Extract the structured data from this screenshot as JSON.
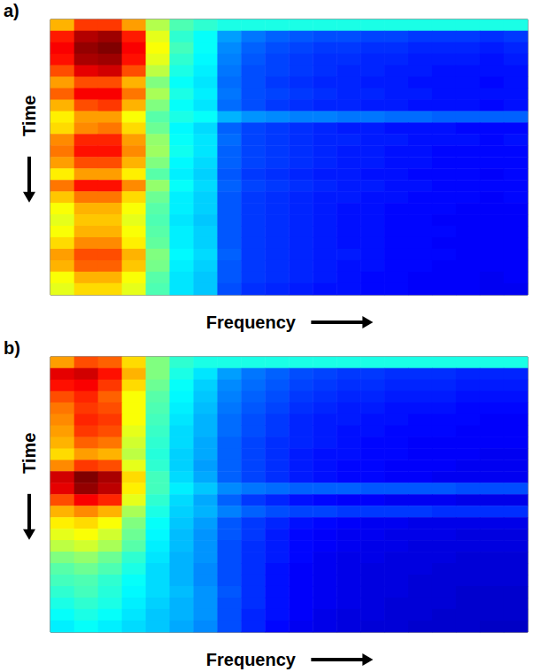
{
  "chart_data": [
    {
      "type": "heatmap",
      "title": "a)",
      "xlabel": "Frequency",
      "ylabel": "Time",
      "tick_labels": false,
      "zlim": [
        0,
        100
      ],
      "values": [
        [
          70,
          82,
          82,
          72,
          55,
          45,
          42,
          40,
          40,
          40,
          40,
          40,
          40,
          40,
          40,
          40,
          40,
          40,
          40,
          40
        ],
        [
          85,
          95,
          97,
          85,
          60,
          42,
          38,
          28,
          24,
          22,
          21,
          20,
          20,
          19,
          19,
          18,
          18,
          18,
          17,
          18
        ],
        [
          88,
          98,
          100,
          88,
          62,
          44,
          38,
          26,
          22,
          20,
          19,
          18,
          18,
          17,
          17,
          16,
          16,
          16,
          15,
          16
        ],
        [
          86,
          96,
          97,
          86,
          60,
          42,
          37,
          25,
          21,
          19,
          18,
          17,
          17,
          16,
          16,
          15,
          15,
          15,
          14,
          15
        ],
        [
          80,
          90,
          92,
          80,
          56,
          40,
          36,
          24,
          20,
          19,
          18,
          17,
          16,
          16,
          15,
          15,
          14,
          14,
          14,
          14
        ],
        [
          72,
          80,
          80,
          70,
          50,
          38,
          35,
          23,
          20,
          18,
          17,
          16,
          16,
          15,
          15,
          14,
          14,
          14,
          13,
          14
        ],
        [
          78,
          88,
          88,
          76,
          54,
          40,
          36,
          24,
          20,
          19,
          18,
          17,
          16,
          16,
          15,
          15,
          14,
          14,
          14,
          14
        ],
        [
          70,
          80,
          82,
          70,
          50,
          38,
          35,
          23,
          20,
          18,
          17,
          16,
          16,
          15,
          15,
          14,
          14,
          14,
          13,
          14
        ],
        [
          64,
          72,
          72,
          62,
          46,
          40,
          38,
          30,
          27,
          26,
          25,
          25,
          24,
          24,
          23,
          23,
          22,
          22,
          22,
          22
        ],
        [
          66,
          74,
          76,
          66,
          48,
          37,
          34,
          22,
          19,
          18,
          17,
          16,
          15,
          15,
          14,
          14,
          14,
          13,
          13,
          13
        ],
        [
          74,
          84,
          84,
          72,
          52,
          38,
          35,
          23,
          19,
          18,
          17,
          16,
          16,
          15,
          15,
          14,
          14,
          14,
          13,
          14
        ],
        [
          76,
          86,
          86,
          74,
          53,
          39,
          35,
          22,
          19,
          18,
          17,
          16,
          15,
          15,
          14,
          14,
          13,
          13,
          13,
          13
        ],
        [
          72,
          80,
          80,
          70,
          50,
          37,
          34,
          22,
          19,
          18,
          17,
          16,
          15,
          15,
          14,
          14,
          13,
          13,
          13,
          13
        ],
        [
          64,
          72,
          72,
          64,
          46,
          36,
          33,
          21,
          18,
          17,
          16,
          15,
          15,
          14,
          14,
          13,
          13,
          13,
          12,
          13
        ],
        [
          76,
          86,
          86,
          74,
          52,
          38,
          34,
          22,
          19,
          18,
          17,
          16,
          15,
          15,
          14,
          14,
          13,
          13,
          13,
          13
        ],
        [
          68,
          76,
          76,
          66,
          48,
          36,
          33,
          21,
          18,
          17,
          16,
          15,
          15,
          14,
          14,
          13,
          13,
          13,
          12,
          13
        ],
        [
          62,
          70,
          70,
          62,
          46,
          36,
          33,
          21,
          18,
          17,
          16,
          15,
          14,
          14,
          13,
          13,
          13,
          12,
          12,
          12
        ],
        [
          60,
          68,
          68,
          60,
          45,
          35,
          32,
          21,
          18,
          17,
          16,
          15,
          14,
          14,
          13,
          13,
          12,
          12,
          12,
          12
        ],
        [
          62,
          70,
          70,
          62,
          46,
          36,
          33,
          21,
          18,
          17,
          16,
          15,
          14,
          14,
          13,
          13,
          13,
          12,
          12,
          12
        ],
        [
          66,
          74,
          74,
          64,
          47,
          36,
          33,
          21,
          18,
          17,
          16,
          15,
          14,
          14,
          13,
          13,
          12,
          12,
          12,
          12
        ],
        [
          72,
          80,
          80,
          70,
          50,
          37,
          34,
          22,
          18,
          17,
          16,
          15,
          15,
          14,
          13,
          13,
          13,
          12,
          12,
          12
        ],
        [
          70,
          78,
          78,
          68,
          49,
          36,
          33,
          21,
          18,
          17,
          16,
          15,
          14,
          14,
          13,
          13,
          12,
          12,
          12,
          12
        ],
        [
          62,
          70,
          70,
          62,
          46,
          35,
          32,
          21,
          18,
          17,
          16,
          15,
          14,
          13,
          13,
          12,
          12,
          12,
          11,
          12
        ],
        [
          60,
          66,
          66,
          60,
          45,
          35,
          32,
          20,
          17,
          16,
          15,
          14,
          14,
          13,
          13,
          12,
          12,
          12,
          11,
          11
        ]
      ]
    },
    {
      "type": "heatmap",
      "title": "b)",
      "xlabel": "Frequency",
      "ylabel": "Time",
      "tick_labels": false,
      "zlim": [
        0,
        100
      ],
      "values": [
        [
          72,
          80,
          78,
          66,
          50,
          42,
          40,
          40,
          40,
          40,
          40,
          40,
          40,
          40,
          40,
          40,
          40,
          40,
          40,
          40
        ],
        [
          90,
          92,
          86,
          70,
          50,
          40,
          35,
          28,
          24,
          22,
          20,
          19,
          18,
          18,
          17,
          17,
          17,
          16,
          16,
          16
        ],
        [
          86,
          88,
          82,
          66,
          48,
          38,
          33,
          26,
          23,
          21,
          19,
          18,
          17,
          17,
          16,
          16,
          16,
          15,
          15,
          15
        ],
        [
          80,
          84,
          78,
          62,
          46,
          37,
          32,
          25,
          22,
          20,
          18,
          17,
          16,
          16,
          15,
          15,
          15,
          14,
          14,
          14
        ],
        [
          76,
          82,
          80,
          62,
          45,
          36,
          31,
          24,
          21,
          19,
          17,
          16,
          15,
          15,
          14,
          14,
          14,
          13,
          13,
          13
        ],
        [
          74,
          84,
          82,
          62,
          44,
          35,
          30,
          23,
          20,
          18,
          16,
          15,
          15,
          14,
          14,
          13,
          13,
          13,
          12,
          12
        ],
        [
          72,
          82,
          80,
          60,
          43,
          34,
          30,
          23,
          20,
          18,
          16,
          15,
          14,
          14,
          13,
          13,
          13,
          12,
          12,
          12
        ],
        [
          70,
          78,
          76,
          58,
          42,
          34,
          29,
          22,
          19,
          17,
          16,
          15,
          14,
          13,
          13,
          12,
          12,
          12,
          12,
          12
        ],
        [
          66,
          72,
          70,
          56,
          41,
          33,
          29,
          22,
          19,
          17,
          15,
          14,
          14,
          13,
          13,
          12,
          12,
          12,
          11,
          11
        ],
        [
          74,
          82,
          80,
          60,
          42,
          33,
          28,
          22,
          19,
          17,
          15,
          14,
          13,
          13,
          12,
          12,
          12,
          11,
          11,
          11
        ],
        [
          92,
          100,
          96,
          66,
          44,
          34,
          29,
          22,
          19,
          17,
          15,
          14,
          13,
          13,
          12,
          12,
          11,
          11,
          11,
          11
        ],
        [
          90,
          98,
          94,
          64,
          44,
          36,
          32,
          26,
          24,
          23,
          22,
          22,
          22,
          21,
          21,
          21,
          21,
          20,
          20,
          20
        ],
        [
          80,
          88,
          84,
          60,
          42,
          34,
          29,
          22,
          18,
          16,
          14,
          13,
          12,
          12,
          11,
          11,
          11,
          10,
          10,
          10
        ],
        [
          70,
          74,
          70,
          54,
          40,
          33,
          30,
          25,
          22,
          20,
          19,
          19,
          18,
          18,
          18,
          18,
          17,
          17,
          17,
          17
        ],
        [
          64,
          66,
          62,
          50,
          38,
          32,
          28,
          21,
          18,
          16,
          14,
          13,
          12,
          11,
          11,
          10,
          10,
          10,
          10,
          10
        ],
        [
          60,
          62,
          58,
          48,
          37,
          31,
          27,
          21,
          18,
          15,
          13,
          12,
          11,
          11,
          10,
          10,
          10,
          9,
          9,
          9
        ],
        [
          56,
          58,
          54,
          46,
          36,
          31,
          27,
          20,
          17,
          15,
          13,
          12,
          11,
          10,
          10,
          9,
          9,
          9,
          9,
          9
        ],
        [
          50,
          52,
          48,
          42,
          35,
          30,
          27,
          20,
          17,
          15,
          13,
          11,
          10,
          10,
          9,
          9,
          9,
          8,
          8,
          8
        ],
        [
          46,
          48,
          45,
          40,
          34,
          30,
          26,
          20,
          17,
          14,
          12,
          11,
          10,
          9,
          9,
          9,
          8,
          8,
          8,
          8
        ],
        [
          44,
          45,
          42,
          38,
          34,
          30,
          26,
          20,
          17,
          14,
          12,
          11,
          10,
          9,
          9,
          8,
          8,
          8,
          8,
          8
        ],
        [
          42,
          44,
          41,
          37,
          34,
          31,
          27,
          21,
          17,
          14,
          12,
          11,
          10,
          9,
          9,
          8,
          8,
          7,
          7,
          7
        ],
        [
          40,
          42,
          40,
          36,
          33,
          30,
          27,
          20,
          17,
          14,
          12,
          11,
          10,
          9,
          8,
          8,
          8,
          7,
          7,
          7
        ],
        [
          38,
          40,
          38,
          35,
          32,
          30,
          27,
          20,
          16,
          14,
          12,
          10,
          9,
          9,
          8,
          8,
          7,
          7,
          7,
          7
        ],
        [
          36,
          38,
          36,
          34,
          32,
          29,
          26,
          20,
          16,
          13,
          11,
          10,
          9,
          8,
          8,
          7,
          7,
          7,
          6,
          6
        ]
      ]
    }
  ]
}
